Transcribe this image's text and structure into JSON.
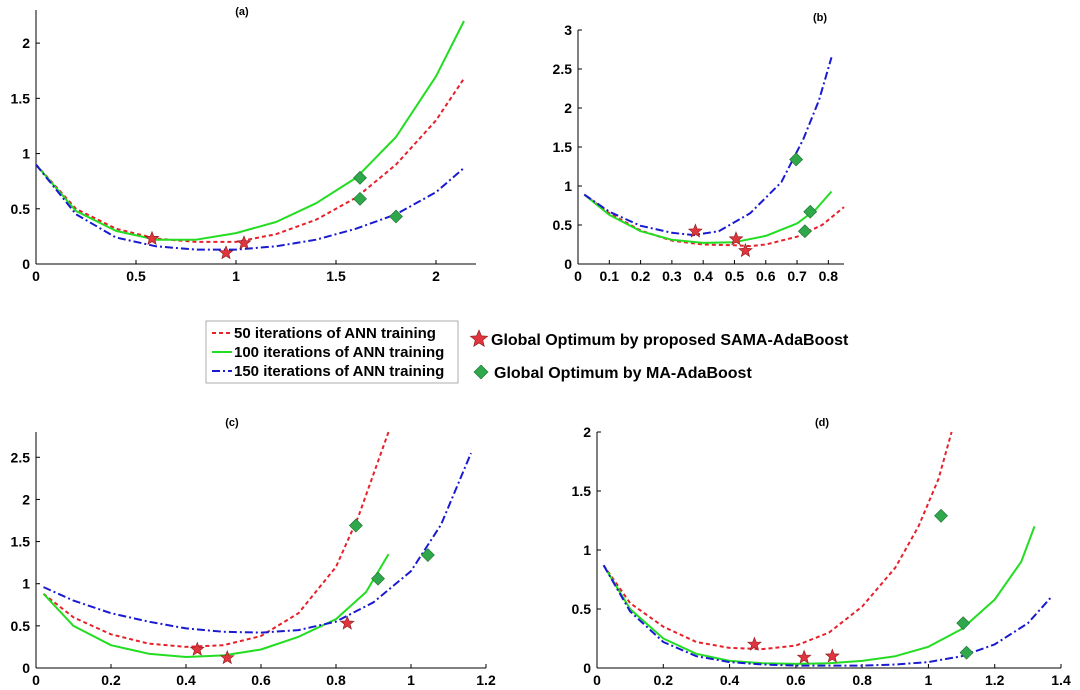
{
  "legend": {
    "lines": [
      {
        "label": "50 iterations of ANN training",
        "color": "#e8202a",
        "dash": "4,3"
      },
      {
        "label": "100 iterations of ANN training",
        "color": "#22dd22",
        "dash": ""
      },
      {
        "label": "150 iterations of ANN training",
        "color": "#1a1ad0",
        "dash": "8,3,2,3"
      }
    ],
    "markers": [
      {
        "label": "Global Optimum by proposed SAMA-AdaBoost",
        "symbol": "star",
        "color": "#e0343e"
      },
      {
        "label": "Global Optimum by MA-AdaBoost",
        "symbol": "diamond",
        "color": "#2ea84a"
      }
    ]
  },
  "chart_data": [
    {
      "type": "line",
      "title": "(a)",
      "xlim": [
        0,
        2.2
      ],
      "ylim": [
        0,
        2.3
      ],
      "xticks": [
        "0",
        "0.5",
        "1",
        "1.5",
        "2"
      ],
      "xtick_values": [
        0,
        0.5,
        1,
        1.5,
        2
      ],
      "yticks": [
        "0",
        "0.5",
        "1",
        "1.5",
        "2"
      ],
      "ytick_values": [
        0,
        0.5,
        1,
        1.5,
        2
      ],
      "series": [
        {
          "name": "50 iterations of ANN training",
          "points": [
            [
              0,
              0.9
            ],
            [
              0.2,
              0.5
            ],
            [
              0.4,
              0.32
            ],
            [
              0.6,
              0.23
            ],
            [
              0.8,
              0.2
            ],
            [
              1.0,
              0.2
            ],
            [
              1.2,
              0.27
            ],
            [
              1.4,
              0.4
            ],
            [
              1.6,
              0.6
            ],
            [
              1.8,
              0.9
            ],
            [
              2.0,
              1.3
            ],
            [
              2.14,
              1.68
            ]
          ]
        },
        {
          "name": "100 iterations of ANN training",
          "points": [
            [
              0,
              0.9
            ],
            [
              0.2,
              0.48
            ],
            [
              0.4,
              0.3
            ],
            [
              0.6,
              0.22
            ],
            [
              0.8,
              0.22
            ],
            [
              1.0,
              0.28
            ],
            [
              1.2,
              0.38
            ],
            [
              1.4,
              0.55
            ],
            [
              1.6,
              0.78
            ],
            [
              1.8,
              1.15
            ],
            [
              2.0,
              1.7
            ],
            [
              2.14,
              2.2
            ]
          ]
        },
        {
          "name": "150 iterations of ANN training",
          "points": [
            [
              0,
              0.9
            ],
            [
              0.2,
              0.45
            ],
            [
              0.4,
              0.24
            ],
            [
              0.6,
              0.16
            ],
            [
              0.8,
              0.13
            ],
            [
              1.0,
              0.13
            ],
            [
              1.2,
              0.16
            ],
            [
              1.4,
              0.22
            ],
            [
              1.6,
              0.32
            ],
            [
              1.8,
              0.45
            ],
            [
              2.0,
              0.65
            ],
            [
              2.14,
              0.87
            ]
          ]
        }
      ],
      "stars": [
        [
          0.58,
          0.23
        ],
        [
          0.95,
          0.1
        ],
        [
          1.04,
          0.19
        ]
      ],
      "diamonds": [
        [
          1.62,
          0.78
        ],
        [
          1.62,
          0.59
        ],
        [
          1.8,
          0.43
        ]
      ]
    },
    {
      "type": "line",
      "title": "(b)",
      "xlim": [
        0,
        0.85
      ],
      "ylim": [
        0,
        3
      ],
      "xticks": [
        "0",
        "0.1",
        "0.2",
        "0.3",
        "0.4",
        "0.5",
        "0.6",
        "0.7",
        "0.8"
      ],
      "xtick_values": [
        0,
        0.1,
        0.2,
        0.3,
        0.4,
        0.5,
        0.6,
        0.7,
        0.8
      ],
      "yticks": [
        "0",
        "0.5",
        "1",
        "1.5",
        "2",
        "2.5",
        "3"
      ],
      "ytick_values": [
        0,
        0.5,
        1,
        1.5,
        2,
        2.5,
        3
      ],
      "series": [
        {
          "name": "50 iterations of ANN training",
          "points": [
            [
              0.02,
              0.89
            ],
            [
              0.1,
              0.65
            ],
            [
              0.2,
              0.43
            ],
            [
              0.3,
              0.3
            ],
            [
              0.4,
              0.25
            ],
            [
              0.5,
              0.24
            ],
            [
              0.55,
              0.23
            ],
            [
              0.6,
              0.25
            ],
            [
              0.7,
              0.35
            ],
            [
              0.78,
              0.5
            ],
            [
              0.85,
              0.73
            ]
          ]
        },
        {
          "name": "100 iterations of ANN training",
          "points": [
            [
              0.02,
              0.89
            ],
            [
              0.1,
              0.63
            ],
            [
              0.2,
              0.42
            ],
            [
              0.3,
              0.31
            ],
            [
              0.4,
              0.27
            ],
            [
              0.5,
              0.28
            ],
            [
              0.6,
              0.36
            ],
            [
              0.7,
              0.52
            ],
            [
              0.76,
              0.7
            ],
            [
              0.81,
              0.93
            ]
          ]
        },
        {
          "name": "150 iterations of ANN training",
          "points": [
            [
              0.02,
              0.89
            ],
            [
              0.1,
              0.67
            ],
            [
              0.2,
              0.49
            ],
            [
              0.3,
              0.4
            ],
            [
              0.37,
              0.37
            ],
            [
              0.45,
              0.42
            ],
            [
              0.55,
              0.65
            ],
            [
              0.65,
              1.05
            ],
            [
              0.72,
              1.6
            ],
            [
              0.77,
              2.1
            ],
            [
              0.81,
              2.65
            ]
          ]
        }
      ],
      "stars": [
        [
          0.375,
          0.42
        ],
        [
          0.505,
          0.32
        ],
        [
          0.535,
          0.17
        ]
      ],
      "diamonds": [
        [
          0.697,
          1.34
        ],
        [
          0.742,
          0.67
        ],
        [
          0.725,
          0.42
        ]
      ]
    },
    {
      "type": "line",
      "title": "(c)",
      "xlim": [
        0,
        1.2
      ],
      "ylim": [
        0,
        2.8
      ],
      "xticks": [
        "0",
        "0.2",
        "0.4",
        "0.6",
        "0.8",
        "1",
        "1.2"
      ],
      "xtick_values": [
        0,
        0.2,
        0.4,
        0.6,
        0.8,
        1.0,
        1.2
      ],
      "yticks": [
        "0",
        "0.5",
        "1",
        "1.5",
        "2",
        "2.5"
      ],
      "ytick_values": [
        0,
        0.5,
        1,
        1.5,
        2,
        2.5
      ],
      "series": [
        {
          "name": "50 iterations of ANN training",
          "points": [
            [
              0.02,
              0.88
            ],
            [
              0.1,
              0.6
            ],
            [
              0.2,
              0.4
            ],
            [
              0.3,
              0.29
            ],
            [
              0.4,
              0.25
            ],
            [
              0.5,
              0.27
            ],
            [
              0.6,
              0.38
            ],
            [
              0.7,
              0.65
            ],
            [
              0.8,
              1.2
            ],
            [
              0.86,
              1.8
            ],
            [
              0.9,
              2.3
            ],
            [
              0.94,
              2.8
            ]
          ]
        },
        {
          "name": "100 iterations of ANN training",
          "points": [
            [
              0.02,
              0.88
            ],
            [
              0.1,
              0.5
            ],
            [
              0.2,
              0.27
            ],
            [
              0.3,
              0.17
            ],
            [
              0.4,
              0.13
            ],
            [
              0.5,
              0.15
            ],
            [
              0.6,
              0.22
            ],
            [
              0.7,
              0.37
            ],
            [
              0.8,
              0.58
            ],
            [
              0.88,
              0.9
            ],
            [
              0.94,
              1.35
            ]
          ]
        },
        {
          "name": "150 iterations of ANN training",
          "points": [
            [
              0.02,
              0.96
            ],
            [
              0.1,
              0.8
            ],
            [
              0.2,
              0.65
            ],
            [
              0.3,
              0.55
            ],
            [
              0.4,
              0.47
            ],
            [
              0.5,
              0.43
            ],
            [
              0.6,
              0.42
            ],
            [
              0.7,
              0.45
            ],
            [
              0.8,
              0.55
            ],
            [
              0.9,
              0.78
            ],
            [
              1.0,
              1.15
            ],
            [
              1.08,
              1.7
            ],
            [
              1.16,
              2.55
            ]
          ]
        }
      ],
      "stars": [
        [
          0.43,
          0.22
        ],
        [
          0.51,
          0.12
        ],
        [
          0.83,
          0.53
        ]
      ],
      "diamonds": [
        [
          0.853,
          1.69
        ],
        [
          0.912,
          1.06
        ],
        [
          1.045,
          1.34
        ]
      ]
    },
    {
      "type": "line",
      "title": "(d)",
      "xlim": [
        0,
        1.4
      ],
      "ylim": [
        0,
        2
      ],
      "xticks": [
        "0",
        "0.2",
        "0.4",
        "0.6",
        "0.8",
        "1",
        "1.2",
        "1.4"
      ],
      "xtick_values": [
        0,
        0.2,
        0.4,
        0.6,
        0.8,
        1.0,
        1.2,
        1.4
      ],
      "yticks": [
        "0",
        "0.5",
        "1",
        "1.5",
        "2"
      ],
      "ytick_values": [
        0,
        0.5,
        1,
        1.5,
        2
      ],
      "series": [
        {
          "name": "50 iterations of ANN training",
          "points": [
            [
              0.02,
              0.87
            ],
            [
              0.1,
              0.55
            ],
            [
              0.2,
              0.35
            ],
            [
              0.3,
              0.22
            ],
            [
              0.4,
              0.17
            ],
            [
              0.5,
              0.16
            ],
            [
              0.6,
              0.19
            ],
            [
              0.7,
              0.3
            ],
            [
              0.8,
              0.52
            ],
            [
              0.9,
              0.85
            ],
            [
              0.97,
              1.2
            ],
            [
              1.03,
              1.6
            ],
            [
              1.07,
              2.0
            ]
          ]
        },
        {
          "name": "100 iterations of ANN training",
          "points": [
            [
              0.02,
              0.87
            ],
            [
              0.1,
              0.5
            ],
            [
              0.2,
              0.25
            ],
            [
              0.3,
              0.12
            ],
            [
              0.4,
              0.06
            ],
            [
              0.5,
              0.04
            ],
            [
              0.6,
              0.035
            ],
            [
              0.7,
              0.04
            ],
            [
              0.8,
              0.06
            ],
            [
              0.9,
              0.1
            ],
            [
              1.0,
              0.18
            ],
            [
              1.1,
              0.33
            ],
            [
              1.2,
              0.58
            ],
            [
              1.28,
              0.9
            ],
            [
              1.32,
              1.2
            ]
          ]
        },
        {
          "name": "150 iterations of ANN training",
          "points": [
            [
              0.02,
              0.87
            ],
            [
              0.1,
              0.48
            ],
            [
              0.2,
              0.22
            ],
            [
              0.3,
              0.1
            ],
            [
              0.4,
              0.05
            ],
            [
              0.5,
              0.03
            ],
            [
              0.6,
              0.02
            ],
            [
              0.7,
              0.02
            ],
            [
              0.8,
              0.02
            ],
            [
              0.9,
              0.03
            ],
            [
              1.0,
              0.05
            ],
            [
              1.1,
              0.1
            ],
            [
              1.2,
              0.2
            ],
            [
              1.3,
              0.38
            ],
            [
              1.37,
              0.6
            ]
          ]
        }
      ],
      "stars": [
        [
          0.475,
          0.2
        ],
        [
          0.625,
          0.09
        ],
        [
          0.71,
          0.1
        ]
      ],
      "diamonds": [
        [
          1.038,
          1.29
        ],
        [
          1.105,
          0.38
        ],
        [
          1.115,
          0.13
        ]
      ]
    }
  ]
}
